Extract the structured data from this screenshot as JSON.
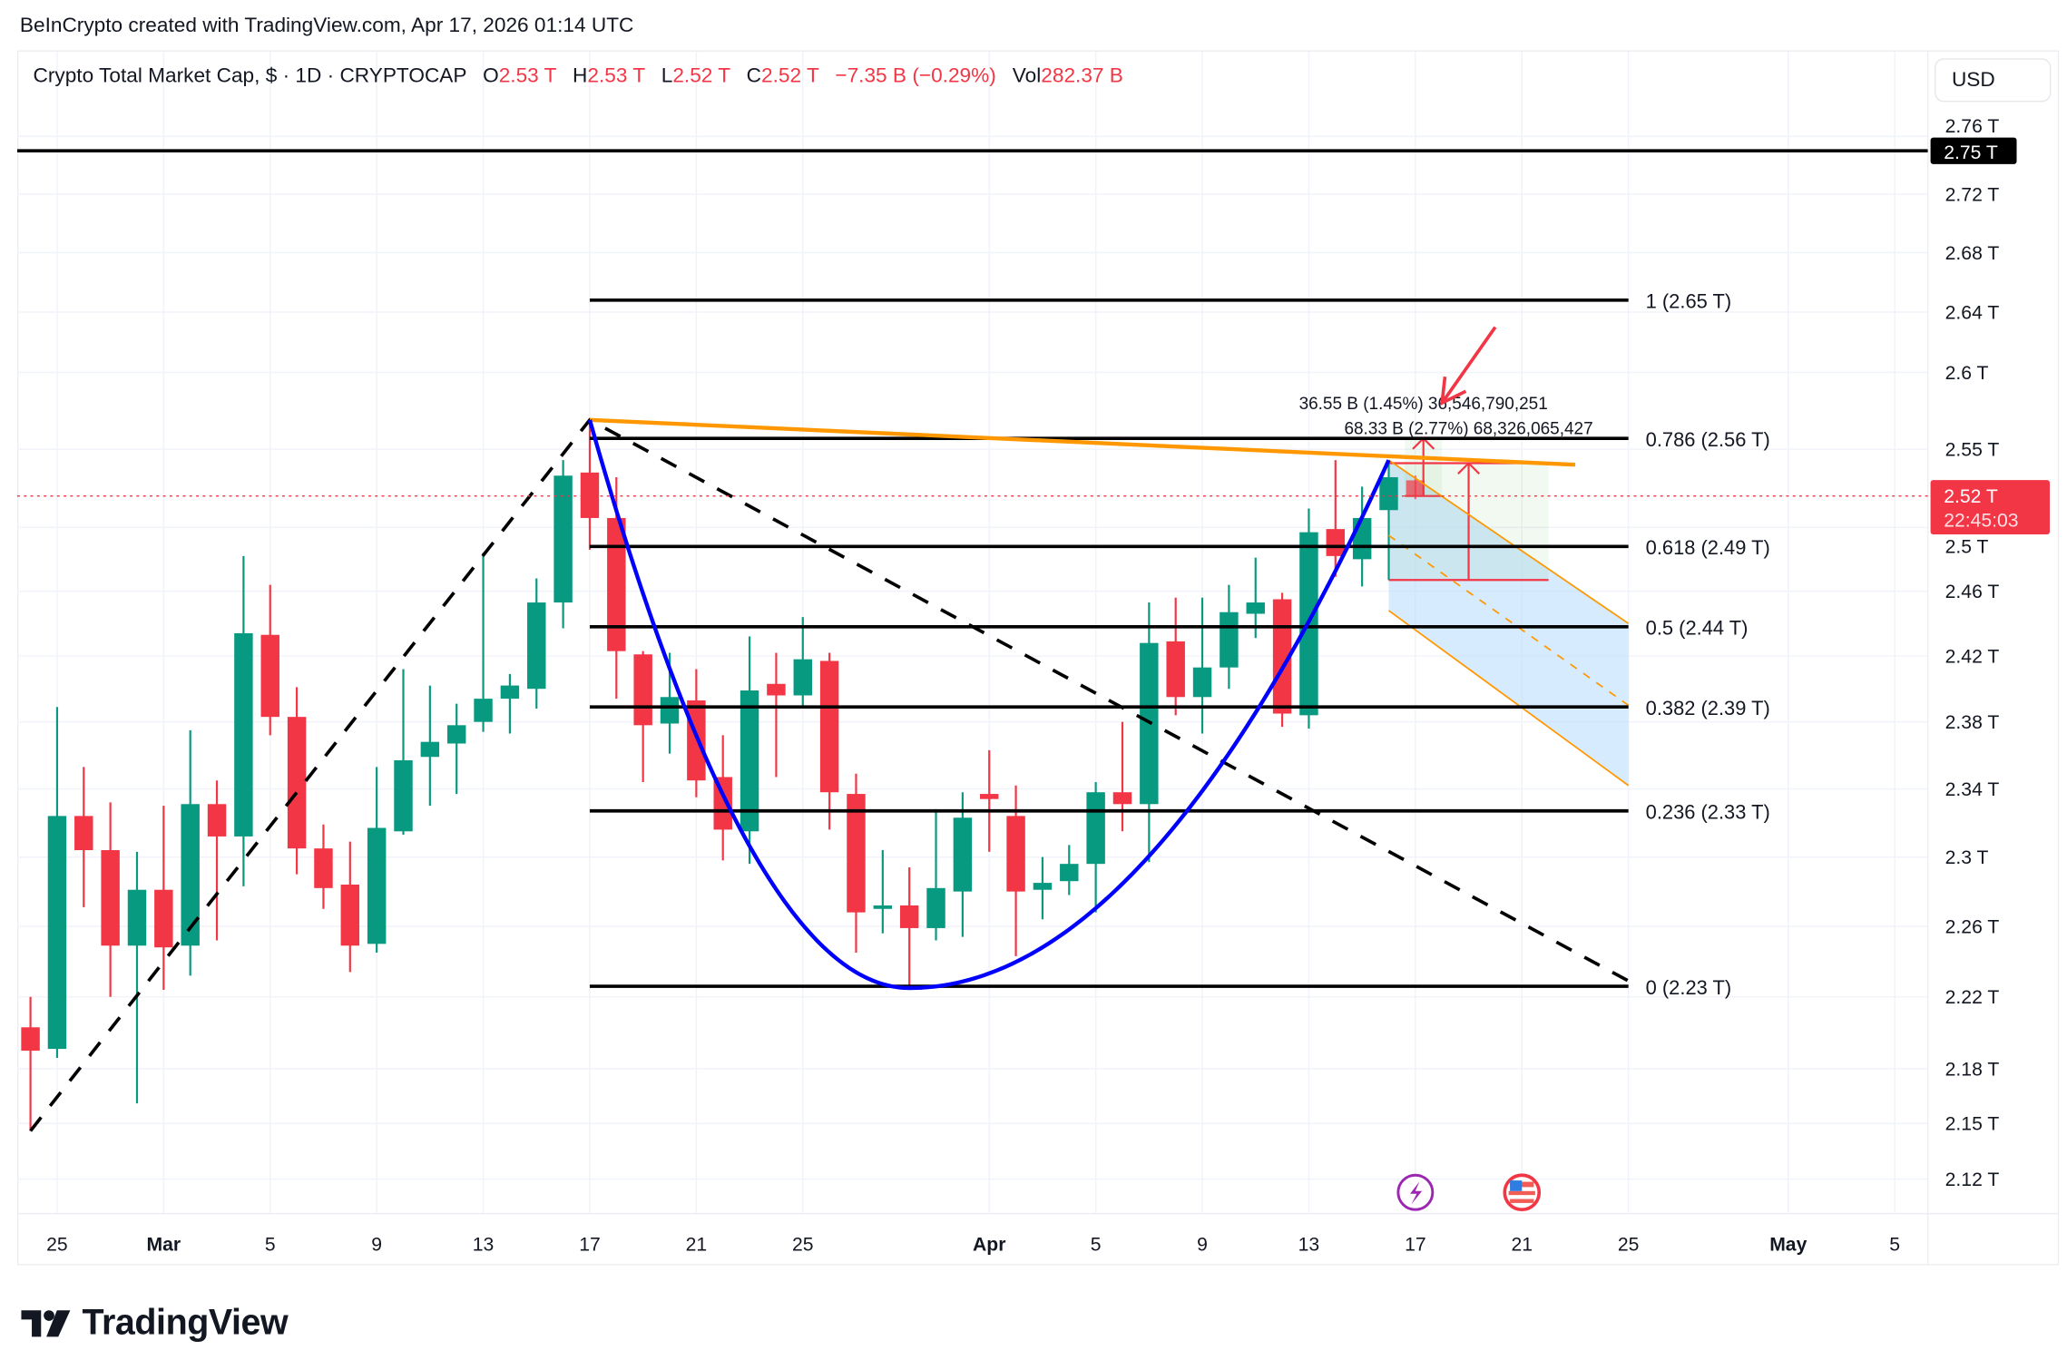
{
  "watermark": "BeInCrypto created with TradingView.com, Apr 17, 2026 01:14 UTC",
  "legend": {
    "title": "Crypto Total Market Cap, $ · 1D · CRYPTOCAP",
    "open_label": "O",
    "open": "2.53 T",
    "high_label": "H",
    "high": "2.53 T",
    "low_label": "L",
    "low": "2.52 T",
    "close_label": "C",
    "close": "2.52 T",
    "change": "−7.35 B (−0.29%)",
    "vol_label": "Vol",
    "vol": "282.37 B"
  },
  "currency_button": "USD",
  "logo_text": "TradingView",
  "colors": {
    "up": "#089981",
    "down": "#f23645",
    "fib": "#000000",
    "trend": "#ff9800",
    "curve": "#0000ff",
    "channel_fill": "#bbdefb",
    "measure": "#f23645",
    "grid": "#f0f3fa"
  },
  "chart_data": {
    "type": "candlestick",
    "scale": "log",
    "ylim": [
      2.12,
      2.77
    ],
    "grid": true,
    "candle_columns": [
      "date",
      "open",
      "high",
      "low",
      "close"
    ],
    "candles": [
      [
        "2026-02-24",
        2.203,
        2.22,
        2.146,
        2.19
      ],
      [
        "2026-02-25",
        2.191,
        2.389,
        2.186,
        2.324
      ],
      [
        "2026-02-26",
        2.324,
        2.353,
        2.271,
        2.304
      ],
      [
        "2026-02-27",
        2.304,
        2.332,
        2.22,
        2.249
      ],
      [
        "2026-02-28",
        2.249,
        2.303,
        2.161,
        2.281
      ],
      [
        "2026-03-01",
        2.281,
        2.33,
        2.224,
        2.248
      ],
      [
        "2026-03-02",
        2.249,
        2.375,
        2.232,
        2.331
      ],
      [
        "2026-03-03",
        2.331,
        2.345,
        2.252,
        2.312
      ],
      [
        "2026-03-04",
        2.312,
        2.482,
        2.283,
        2.434
      ],
      [
        "2026-03-05",
        2.433,
        2.464,
        2.372,
        2.383
      ],
      [
        "2026-03-06",
        2.383,
        2.401,
        2.29,
        2.305
      ],
      [
        "2026-03-07",
        2.305,
        2.319,
        2.27,
        2.282
      ],
      [
        "2026-03-08",
        2.284,
        2.309,
        2.234,
        2.249
      ],
      [
        "2026-03-09",
        2.25,
        2.353,
        2.245,
        2.317
      ],
      [
        "2026-03-10",
        2.315,
        2.412,
        2.313,
        2.357
      ],
      [
        "2026-03-11",
        2.359,
        2.402,
        2.33,
        2.368
      ],
      [
        "2026-03-12",
        2.367,
        2.391,
        2.337,
        2.378
      ],
      [
        "2026-03-13",
        2.38,
        2.484,
        2.374,
        2.394
      ],
      [
        "2026-03-14",
        2.394,
        2.409,
        2.373,
        2.402
      ],
      [
        "2026-03-15",
        2.4,
        2.468,
        2.388,
        2.453
      ],
      [
        "2026-03-16",
        2.453,
        2.543,
        2.437,
        2.533
      ],
      [
        "2026-03-17",
        2.535,
        2.569,
        2.486,
        2.506
      ],
      [
        "2026-03-18",
        2.506,
        2.532,
        2.394,
        2.423
      ],
      [
        "2026-03-19",
        2.421,
        2.423,
        2.344,
        2.378
      ],
      [
        "2026-03-20",
        2.379,
        2.422,
        2.361,
        2.395
      ],
      [
        "2026-03-21",
        2.393,
        2.412,
        2.335,
        2.345
      ],
      [
        "2026-03-22",
        2.347,
        2.372,
        2.298,
        2.316
      ],
      [
        "2026-03-23",
        2.315,
        2.432,
        2.296,
        2.399
      ],
      [
        "2026-03-24",
        2.403,
        2.422,
        2.347,
        2.396
      ],
      [
        "2026-03-25",
        2.396,
        2.444,
        2.389,
        2.418
      ],
      [
        "2026-03-26",
        2.417,
        2.422,
        2.316,
        2.338
      ],
      [
        "2026-03-27",
        2.337,
        2.349,
        2.245,
        2.268
      ],
      [
        "2026-03-28",
        2.27,
        2.304,
        2.256,
        2.272
      ],
      [
        "2026-03-29",
        2.272,
        2.294,
        2.226,
        2.259
      ],
      [
        "2026-03-30",
        2.259,
        2.328,
        2.252,
        2.282
      ],
      [
        "2026-03-31",
        2.28,
        2.338,
        2.254,
        2.323
      ],
      [
        "2026-04-01",
        2.337,
        2.363,
        2.303,
        2.334
      ],
      [
        "2026-04-02",
        2.324,
        2.342,
        2.243,
        2.28
      ],
      [
        "2026-04-03",
        2.281,
        2.3,
        2.264,
        2.285
      ],
      [
        "2026-04-04",
        2.286,
        2.307,
        2.278,
        2.296
      ],
      [
        "2026-04-05",
        2.296,
        2.344,
        2.268,
        2.338
      ],
      [
        "2026-04-06",
        2.338,
        2.38,
        2.315,
        2.331
      ],
      [
        "2026-04-07",
        2.331,
        2.453,
        2.297,
        2.428
      ],
      [
        "2026-04-08",
        2.429,
        2.456,
        2.384,
        2.395
      ],
      [
        "2026-04-09",
        2.395,
        2.456,
        2.373,
        2.413
      ],
      [
        "2026-04-10",
        2.413,
        2.464,
        2.4,
        2.447
      ],
      [
        "2026-04-11",
        2.446,
        2.481,
        2.431,
        2.453
      ],
      [
        "2026-04-12",
        2.455,
        2.459,
        2.377,
        2.385
      ],
      [
        "2026-04-13",
        2.384,
        2.512,
        2.376,
        2.497
      ],
      [
        "2026-04-14",
        2.499,
        2.543,
        2.469,
        2.482
      ],
      [
        "2026-04-15",
        2.48,
        2.526,
        2.463,
        2.506
      ],
      [
        "2026-04-16",
        2.511,
        2.543,
        2.467,
        2.532
      ],
      [
        "2026-04-17",
        2.53,
        2.533,
        2.518,
        2.52
      ]
    ],
    "y_ticks": [
      {
        "value": 2.76,
        "label": "2.76 T"
      },
      {
        "value": 2.72,
        "label": "2.72 T"
      },
      {
        "value": 2.68,
        "label": "2.68 T"
      },
      {
        "value": 2.64,
        "label": "2.64 T"
      },
      {
        "value": 2.6,
        "label": "2.6 T"
      },
      {
        "value": 2.55,
        "label": "2.55 T"
      },
      {
        "value": 2.5,
        "label": "2.5 T"
      },
      {
        "value": 2.46,
        "label": "2.46 T"
      },
      {
        "value": 2.42,
        "label": "2.42 T"
      },
      {
        "value": 2.38,
        "label": "2.38 T"
      },
      {
        "value": 2.34,
        "label": "2.34 T"
      },
      {
        "value": 2.3,
        "label": "2.3 T"
      },
      {
        "value": 2.26,
        "label": "2.26 T"
      },
      {
        "value": 2.22,
        "label": "2.22 T"
      },
      {
        "value": 2.18,
        "label": "2.18 T"
      },
      {
        "value": 2.15,
        "label": "2.15 T"
      },
      {
        "value": 2.12,
        "label": "2.12 T"
      }
    ],
    "x_ticks": [
      {
        "date": "2026-02-25",
        "label": "25",
        "month": false
      },
      {
        "date": "2026-03-01",
        "label": "Mar",
        "month": true
      },
      {
        "date": "2026-03-05",
        "label": "5",
        "month": false
      },
      {
        "date": "2026-03-09",
        "label": "9",
        "month": false
      },
      {
        "date": "2026-03-13",
        "label": "13",
        "month": false
      },
      {
        "date": "2026-03-17",
        "label": "17",
        "month": false
      },
      {
        "date": "2026-03-21",
        "label": "21",
        "month": false
      },
      {
        "date": "2026-03-25",
        "label": "25",
        "month": false
      },
      {
        "date": "2026-04-01",
        "label": "Apr",
        "month": true
      },
      {
        "date": "2026-04-05",
        "label": "5",
        "month": false
      },
      {
        "date": "2026-04-09",
        "label": "9",
        "month": false
      },
      {
        "date": "2026-04-13",
        "label": "13",
        "month": false
      },
      {
        "date": "2026-04-17",
        "label": "17",
        "month": false
      },
      {
        "date": "2026-04-21",
        "label": "21",
        "month": false
      },
      {
        "date": "2026-04-25",
        "label": "25",
        "month": false
      },
      {
        "date": "2026-05-01",
        "label": "May",
        "month": true
      },
      {
        "date": "2026-05-05",
        "label": "5",
        "month": false
      }
    ],
    "horizontal_line": {
      "price": 2.75,
      "label": "2.75 T"
    },
    "last_price": {
      "price": 2.52,
      "label": "2.52 T",
      "countdown": "22:45:03"
    },
    "fibonacci": {
      "start_date": "2026-03-17",
      "end_date": "2026-04-25",
      "levels": [
        {
          "level": 1,
          "price": 2.648,
          "label": "1 (2.65 T)"
        },
        {
          "level": 0.786,
          "price": 2.557,
          "label": "0.786 (2.56 T)"
        },
        {
          "level": 0.618,
          "price": 2.488,
          "label": "0.618 (2.49 T)"
        },
        {
          "level": 0.5,
          "price": 2.438,
          "label": "0.5 (2.44 T)"
        },
        {
          "level": 0.382,
          "price": 2.389,
          "label": "0.382 (2.39 T)"
        },
        {
          "level": 0.236,
          "price": 2.327,
          "label": "0.236 (2.33 T)"
        },
        {
          "level": 0,
          "price": 2.226,
          "label": "0 (2.23 T)"
        }
      ]
    },
    "dashed_path": [
      [
        "2026-02-24",
        2.146
      ],
      [
        "2026-03-17",
        2.569
      ],
      [
        "2026-04-25",
        2.229
      ]
    ],
    "trendline": [
      [
        "2026-03-17",
        2.569
      ],
      [
        "2026-04-23",
        2.54
      ]
    ],
    "cup_curve": {
      "start": [
        "2026-03-17",
        2.569
      ],
      "bottom": [
        "2026-03-29",
        2.225
      ],
      "end": [
        "2026-04-16",
        2.543
      ]
    },
    "channel": {
      "start_date": "2026-04-16",
      "end_date": "2026-04-25",
      "upper": [
        2.543,
        2.44
      ],
      "middle": [
        2.495,
        2.39
      ],
      "lower": [
        2.448,
        2.342
      ]
    },
    "measures": [
      {
        "start_date": "2026-04-17",
        "end_date": "2026-04-18",
        "from": 2.52,
        "to": 2.557,
        "label": "36.55 B (1.45%) 36,546,790,251"
      },
      {
        "start_date": "2026-04-16",
        "end_date": "2026-04-22",
        "from": 2.467,
        "to": 2.541,
        "label": "68.33 B (2.77%) 68,326,065,427"
      }
    ],
    "arrow_annotation": {
      "from": [
        "2026-04-20",
        2.63
      ],
      "to": [
        "2026-04-18",
        2.58
      ]
    },
    "events": [
      {
        "date": "2026-04-17",
        "icon": "lightning-icon"
      },
      {
        "date": "2026-04-21",
        "icon": "us-flag-icon"
      }
    ]
  }
}
